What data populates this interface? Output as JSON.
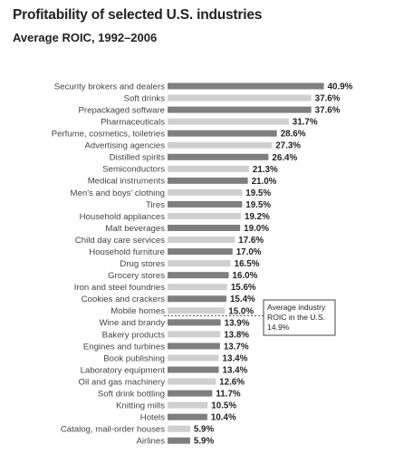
{
  "chart_data": {
    "type": "bar",
    "orientation": "horizontal",
    "title": "Profitability of selected U.S. industries",
    "subtitle": "Average ROIC, 1992–2006",
    "categories": [
      "Security brokers and dealers",
      "Soft drinks",
      "Prepackaged software",
      "Pharmaceuticals",
      "Perfume, cosmetics, toiletries",
      "Advertising agencies",
      "Distilled spirits",
      "Semiconductors",
      "Medical instruments",
      "Men's and boys' clothing",
      "Tires",
      "Household appliances",
      "Malt beverages",
      "Child day care services",
      "Household furniture",
      "Drug stores",
      "Grocery stores",
      "Iron and steel foundries",
      "Cookies and crackers",
      "Mobile homes",
      "Wine and brandy",
      "Bakery products",
      "Engines and turbines",
      "Book publishing",
      "Laboratory equipment",
      "Oil and gas machinery",
      "Soft drink bottling",
      "Knitting mills",
      "Hotels",
      "Catalog, mail-order houses",
      "Airlines"
    ],
    "values": [
      40.9,
      37.6,
      37.6,
      31.7,
      28.6,
      27.3,
      26.4,
      21.3,
      21.0,
      19.5,
      19.5,
      19.2,
      19.0,
      17.6,
      17.0,
      16.5,
      16.0,
      15.6,
      15.4,
      15.0,
      13.9,
      13.8,
      13.7,
      13.4,
      13.4,
      12.6,
      11.7,
      10.5,
      10.4,
      5.9,
      5.9
    ],
    "value_labels": [
      "40.9%",
      "37.6%",
      "37.6%",
      "31.7%",
      "28.6%",
      "27.3%",
      "26.4%",
      "21.3%",
      "21.0%",
      "19.5%",
      "19.5%",
      "19.2%",
      "19.0%",
      "17.6%",
      "17.0%",
      "16.5%",
      "16.0%",
      "15.6%",
      "15.4%",
      "15.0%",
      "13.9%",
      "13.8%",
      "13.7%",
      "13.4%",
      "13.4%",
      "12.6%",
      "11.7%",
      "10.5%",
      "10.4%",
      "5.9%",
      "5.9%"
    ],
    "bar_colors": [
      "#7f7f7f",
      "#cfcfcf"
    ],
    "annotation": {
      "lines": [
        "Average industry",
        "ROIC in the U.S.",
        "14.9%"
      ],
      "value": 14.9
    },
    "grid": false,
    "legend": "none"
  }
}
